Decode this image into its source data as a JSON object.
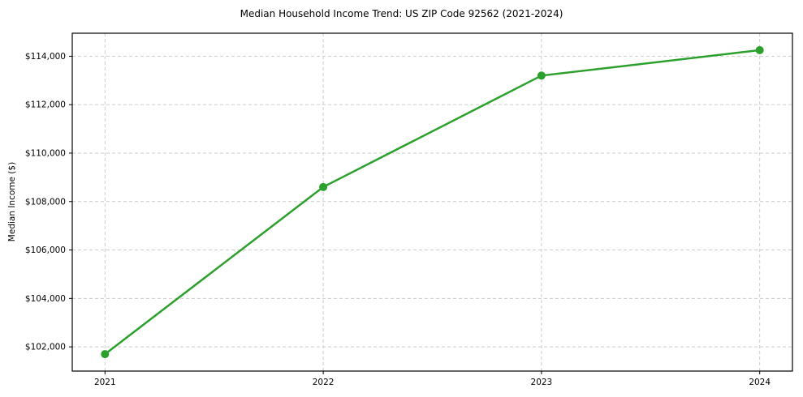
{
  "chart_data": {
    "type": "line",
    "title": "Median Household Income Trend: US ZIP Code 92562 (2021-2024)",
    "xlabel": "",
    "ylabel": "Median Income ($)",
    "x": [
      2021,
      2022,
      2023,
      2024
    ],
    "series": [
      {
        "name": "Median Household Income",
        "values": [
          101700,
          108600,
          113200,
          114250
        ]
      }
    ],
    "xticks": [
      2021,
      2022,
      2023,
      2024
    ],
    "yticks": [
      102000,
      104000,
      106000,
      108000,
      110000,
      112000,
      114000
    ],
    "ytick_prefix": "$",
    "xlim": [
      2020.85,
      2024.15
    ],
    "ylim": [
      101000,
      114950
    ],
    "grid": "dashed both axes",
    "legend_position": "none",
    "line_color": "#2ca02c",
    "marker": "circle",
    "grid_color": "#cccccc",
    "spine_color": "#000000",
    "background_color": "#ffffff"
  }
}
